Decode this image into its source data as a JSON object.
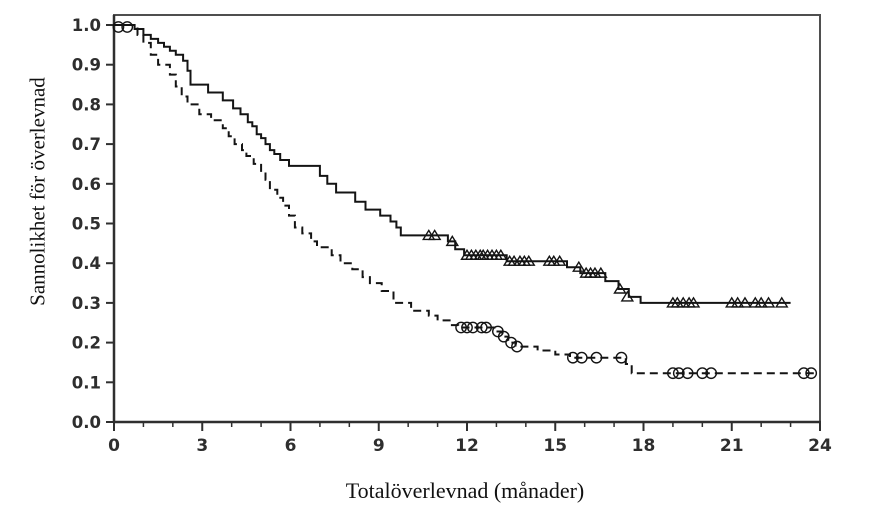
{
  "chart_data": {
    "type": "line",
    "subtype": "kaplan-meier-step",
    "title": "",
    "xlabel": "Totalöverlevnad (månader)",
    "ylabel": "Sannolikhet för överlevnad",
    "xlim": [
      0,
      24
    ],
    "ylim": [
      0.0,
      1.0
    ],
    "grid": false,
    "legend": "none",
    "x_ticks": [
      0,
      3,
      6,
      9,
      12,
      15,
      18,
      21,
      24
    ],
    "x_tick_labels": [
      "0",
      "3",
      "6",
      "9",
      "12",
      "15",
      "18",
      "21",
      "24"
    ],
    "x_minor_tick_step": 1,
    "y_ticks": [
      0.0,
      0.1,
      0.2,
      0.3,
      0.4,
      0.5,
      0.6,
      0.7,
      0.8,
      0.9,
      1.0
    ],
    "y_tick_labels": [
      "0.0",
      "0.1",
      "0.2",
      "0.3",
      "0.4",
      "0.5",
      "0.6",
      "0.7",
      "0.8",
      "0.9",
      "1.0"
    ],
    "colors": {
      "curve": "#141414",
      "frame": "#4f4f4f",
      "tick_text": "#2e2e2e"
    },
    "series": [
      {
        "name": "upper-curve-solid",
        "line_style": "solid",
        "censor_marker": "triangle",
        "points": [
          [
            0,
            1.0
          ],
          [
            0.7,
            0.99
          ],
          [
            1.0,
            0.975
          ],
          [
            1.25,
            0.965
          ],
          [
            1.5,
            0.955
          ],
          [
            1.7,
            0.945
          ],
          [
            1.9,
            0.935
          ],
          [
            2.1,
            0.925
          ],
          [
            2.35,
            0.91
          ],
          [
            2.5,
            0.885
          ],
          [
            2.6,
            0.85
          ],
          [
            3.2,
            0.83
          ],
          [
            3.7,
            0.81
          ],
          [
            4.05,
            0.79
          ],
          [
            4.3,
            0.775
          ],
          [
            4.55,
            0.755
          ],
          [
            4.7,
            0.745
          ],
          [
            4.85,
            0.725
          ],
          [
            5.0,
            0.715
          ],
          [
            5.15,
            0.7
          ],
          [
            5.3,
            0.685
          ],
          [
            5.45,
            0.675
          ],
          [
            5.65,
            0.66
          ],
          [
            5.95,
            0.645
          ],
          [
            7.0,
            0.62
          ],
          [
            7.25,
            0.6
          ],
          [
            7.55,
            0.578
          ],
          [
            8.2,
            0.555
          ],
          [
            8.55,
            0.535
          ],
          [
            9.05,
            0.52
          ],
          [
            9.4,
            0.505
          ],
          [
            9.6,
            0.49
          ],
          [
            9.75,
            0.47
          ],
          [
            11.35,
            0.455
          ],
          [
            11.6,
            0.435
          ],
          [
            11.9,
            0.42
          ],
          [
            13.35,
            0.405
          ],
          [
            15.4,
            0.39
          ],
          [
            15.85,
            0.375
          ],
          [
            16.7,
            0.355
          ],
          [
            17.15,
            0.335
          ],
          [
            17.5,
            0.315
          ],
          [
            17.9,
            0.3
          ],
          [
            23.0,
            0.3
          ]
        ],
        "censor_marks": [
          [
            10.7,
            0.47
          ],
          [
            10.9,
            0.47
          ],
          [
            11.5,
            0.455
          ],
          [
            12.0,
            0.42
          ],
          [
            12.15,
            0.42
          ],
          [
            12.3,
            0.42
          ],
          [
            12.45,
            0.42
          ],
          [
            12.55,
            0.42
          ],
          [
            12.7,
            0.42
          ],
          [
            12.85,
            0.42
          ],
          [
            13.0,
            0.42
          ],
          [
            13.15,
            0.42
          ],
          [
            13.45,
            0.405
          ],
          [
            13.6,
            0.405
          ],
          [
            13.8,
            0.405
          ],
          [
            13.95,
            0.405
          ],
          [
            14.1,
            0.405
          ],
          [
            14.8,
            0.405
          ],
          [
            14.95,
            0.405
          ],
          [
            15.15,
            0.405
          ],
          [
            15.8,
            0.39
          ],
          [
            16.05,
            0.375
          ],
          [
            16.2,
            0.375
          ],
          [
            16.35,
            0.375
          ],
          [
            16.55,
            0.375
          ],
          [
            17.2,
            0.335
          ],
          [
            17.45,
            0.315
          ],
          [
            19.0,
            0.3
          ],
          [
            19.15,
            0.3
          ],
          [
            19.35,
            0.3
          ],
          [
            19.55,
            0.3
          ],
          [
            19.7,
            0.3
          ],
          [
            21.0,
            0.3
          ],
          [
            21.2,
            0.3
          ],
          [
            21.45,
            0.3
          ],
          [
            21.8,
            0.3
          ],
          [
            22.0,
            0.3
          ],
          [
            22.25,
            0.3
          ],
          [
            22.7,
            0.3
          ]
        ]
      },
      {
        "name": "lower-curve-dashed",
        "line_style": "dashed",
        "censor_marker": "circle",
        "points": [
          [
            0,
            1.0
          ],
          [
            0.8,
            0.975
          ],
          [
            1.0,
            0.955
          ],
          [
            1.25,
            0.925
          ],
          [
            1.5,
            0.9
          ],
          [
            1.9,
            0.875
          ],
          [
            2.1,
            0.845
          ],
          [
            2.3,
            0.82
          ],
          [
            2.5,
            0.8
          ],
          [
            2.9,
            0.775
          ],
          [
            3.3,
            0.76
          ],
          [
            3.7,
            0.74
          ],
          [
            3.9,
            0.72
          ],
          [
            4.1,
            0.7
          ],
          [
            4.35,
            0.685
          ],
          [
            4.5,
            0.67
          ],
          [
            4.75,
            0.65
          ],
          [
            5.0,
            0.63
          ],
          [
            5.15,
            0.61
          ],
          [
            5.3,
            0.585
          ],
          [
            5.55,
            0.565
          ],
          [
            5.75,
            0.545
          ],
          [
            5.95,
            0.52
          ],
          [
            6.15,
            0.49
          ],
          [
            6.4,
            0.475
          ],
          [
            6.7,
            0.455
          ],
          [
            6.9,
            0.44
          ],
          [
            7.4,
            0.42
          ],
          [
            7.7,
            0.4
          ],
          [
            8.1,
            0.385
          ],
          [
            8.45,
            0.365
          ],
          [
            8.7,
            0.35
          ],
          [
            9.1,
            0.33
          ],
          [
            9.5,
            0.3
          ],
          [
            10.1,
            0.28
          ],
          [
            10.7,
            0.268
          ],
          [
            11.0,
            0.256
          ],
          [
            11.45,
            0.244
          ],
          [
            11.7,
            0.238
          ],
          [
            13.0,
            0.228
          ],
          [
            13.2,
            0.215
          ],
          [
            13.4,
            0.2
          ],
          [
            13.65,
            0.19
          ],
          [
            14.4,
            0.18
          ],
          [
            15.0,
            0.17
          ],
          [
            15.5,
            0.162
          ],
          [
            17.4,
            0.146
          ],
          [
            17.6,
            0.123
          ],
          [
            23.8,
            0.123
          ]
        ],
        "censor_marks": [
          [
            0.15,
            0.995
          ],
          [
            0.45,
            0.995
          ],
          [
            11.8,
            0.238
          ],
          [
            12.0,
            0.238
          ],
          [
            12.2,
            0.238
          ],
          [
            12.5,
            0.238
          ],
          [
            12.65,
            0.238
          ],
          [
            13.05,
            0.228
          ],
          [
            13.25,
            0.215
          ],
          [
            13.5,
            0.2
          ],
          [
            13.7,
            0.19
          ],
          [
            15.6,
            0.162
          ],
          [
            15.9,
            0.162
          ],
          [
            16.4,
            0.162
          ],
          [
            17.25,
            0.162
          ],
          [
            19.0,
            0.123
          ],
          [
            19.2,
            0.123
          ],
          [
            19.5,
            0.123
          ],
          [
            20.0,
            0.123
          ],
          [
            20.3,
            0.123
          ],
          [
            23.45,
            0.123
          ],
          [
            23.7,
            0.123
          ]
        ]
      }
    ]
  }
}
